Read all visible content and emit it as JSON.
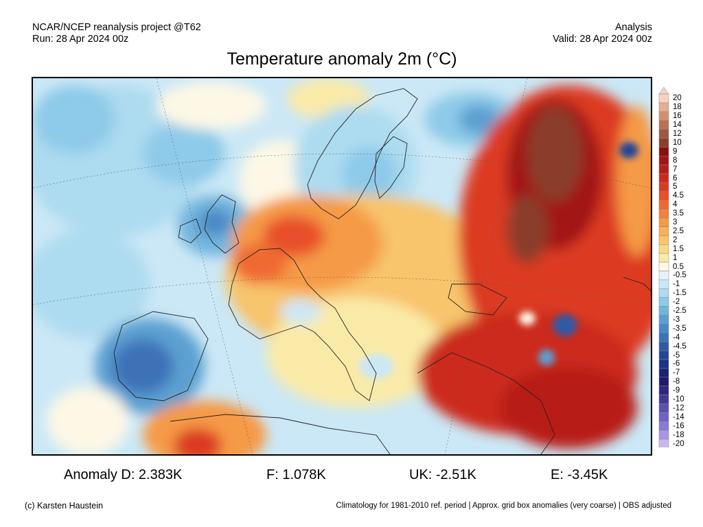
{
  "header": {
    "project": "NCAR/NCEP reanalysis project @T62",
    "run": "Run: 28 Apr 2024 00z",
    "product": "Analysis",
    "valid": "Valid: 28 Apr 2024 00z"
  },
  "title": "Temperature anomaly 2m (°C)",
  "colorbar": {
    "levels": [
      "20",
      "18",
      "16",
      "14",
      "12",
      "10",
      "9",
      "8",
      "7",
      "6",
      "5",
      "4.5",
      "4",
      "3.5",
      "3",
      "2.5",
      "2",
      "1.5",
      "1",
      "0.5",
      "-0.5",
      "-1",
      "-1.5",
      "-2",
      "-2.5",
      "-3",
      "-3.5",
      "-4",
      "-4.5",
      "-5",
      "-6",
      "-7",
      "-8",
      "-9",
      "-10",
      "-12",
      "-14",
      "-16",
      "-18",
      "-20"
    ],
    "colors": [
      "#f6d2c3",
      "#e6ad92",
      "#d48f72",
      "#bb7055",
      "#9e5740",
      "#8a3e2b",
      "#8b0e10",
      "#a21414",
      "#b81c18",
      "#cc2a1f",
      "#dc3b23",
      "#e8502b",
      "#ef6a33",
      "#f3823c",
      "#f59a46",
      "#f7b257",
      "#f8c46c",
      "#f9d985",
      "#faeaa8",
      "#fdf8e6",
      "#e4f3fb",
      "#cbe8f6",
      "#addbf0",
      "#8ecae9",
      "#72b5dd",
      "#5ca0d1",
      "#4b89c4",
      "#3c72b7",
      "#2f5aa6",
      "#244596",
      "#1c3385",
      "#1a2473",
      "#211a6a",
      "#31267f",
      "#453896",
      "#5a50ae",
      "#7062c4",
      "#8a7ad6",
      "#a896e3",
      "#c8b8ef"
    ]
  },
  "stats": {
    "d": "Anomaly D: 2.383K",
    "f": "F: 1.078K",
    "uk": "UK: -2.51K",
    "e": "E: -3.45K"
  },
  "footer": {
    "credit": "(c) Karsten Haustein",
    "note": "Climatology for 1981-2010 ref. period | Approx. grid box anomalies (very coarse) | OBS adjusted"
  }
}
